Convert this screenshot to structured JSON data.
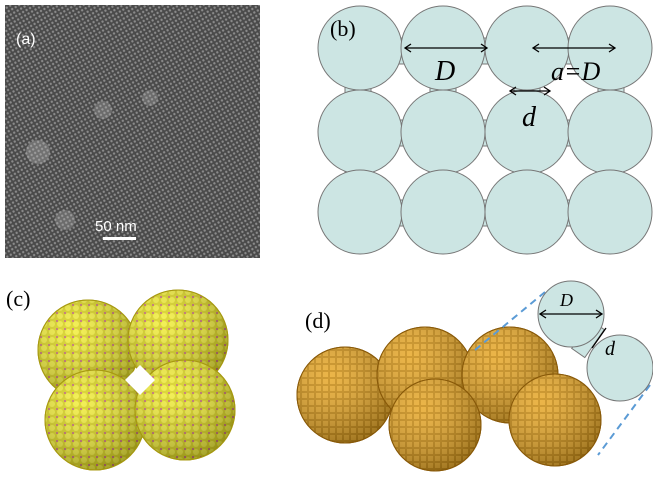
{
  "panels": {
    "a": {
      "label": "(a)",
      "scale_bar": "50 nm"
    },
    "b": {
      "label": "(b)",
      "D": "D",
      "a": "a=D",
      "d": "d"
    },
    "c": {
      "label": "(c)"
    },
    "d": {
      "label": "(d)",
      "D": "D",
      "d": "d"
    }
  }
}
